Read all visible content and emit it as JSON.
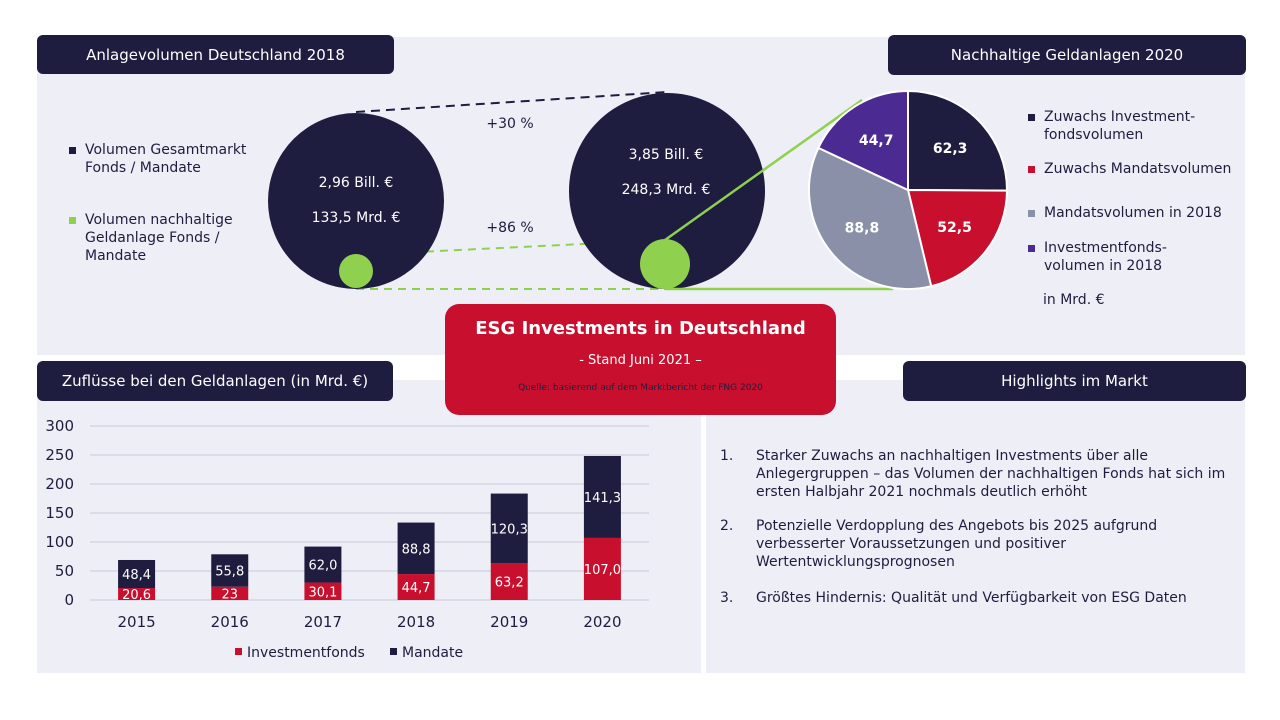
{
  "colors": {
    "navy": "#1e1d3f",
    "green": "#8fd14f",
    "red": "#c8102e",
    "grey": "#8a90a8",
    "purple": "#4b2a91",
    "panel": "#eeeef6"
  },
  "top_left": {
    "header": "Anlagevolumen Deutschland 2018",
    "legend": [
      {
        "label": "Volumen Gesamtmarkt Fonds / Mandate",
        "color": "#1e1d3f"
      },
      {
        "label": "Volumen nachhaltige Geldanlage Fonds / Mandate",
        "color": "#8fd14f"
      }
    ],
    "circle_2018": {
      "total": "2,96 Bill.  €",
      "sustainable": "133,5 Mrd. €"
    },
    "circle_2020": {
      "total": "3,85 Bill.  €",
      "sustainable": "248,3 Mrd. €"
    },
    "growth_total": "+30 %",
    "growth_sustainable": "+86 %"
  },
  "top_right": {
    "header": "Nachhaltige Geldanlagen 2020",
    "legend": [
      {
        "label": "Zuwachs Investment-fondsvolumen",
        "color": "#1e1d3f"
      },
      {
        "label": "Zuwachs Mandatsvolumen",
        "color": "#c8102e"
      },
      {
        "label": "Mandatsvolumen in  2018",
        "color": "#8a90a8"
      },
      {
        "label": "Investmentfonds-volumen in  2018",
        "color": "#4b2a91"
      }
    ],
    "unit": "in  Mrd. €"
  },
  "pie_data": {
    "type": "pie",
    "slices": [
      {
        "label": "Zuwachs Investmentfondsvolumen",
        "value": 62.3,
        "text": "62,3",
        "color": "#1e1d3f"
      },
      {
        "label": "Zuwachs Mandatsvolumen",
        "value": 52.5,
        "text": "52,5",
        "color": "#c8102e"
      },
      {
        "label": "Mandatsvolumen in 2018",
        "value": 88.8,
        "text": "88,8",
        "color": "#8a90a8"
      },
      {
        "label": "Investmentfondsvolumen in 2018",
        "value": 44.7,
        "text": "44,7",
        "color": "#4b2a91"
      }
    ]
  },
  "center": {
    "title": "ESG Investments in Deutschland",
    "subtitle": "- Stand Juni 2021 –",
    "source": "Quelle: basierend auf dem Marktbericht der FNG 2020"
  },
  "bottom_left": {
    "header": "Zuflüsse bei den Geldanlagen  (in Mrd. €)"
  },
  "chart_data": {
    "type": "bar",
    "stacked": true,
    "categories": [
      "2015",
      "2016",
      "2017",
      "2018",
      "2019",
      "2020"
    ],
    "series": [
      {
        "name": "Investmentfonds",
        "color": "#c8102e",
        "values": [
          20.6,
          23,
          30.1,
          44.7,
          63.2,
          107.0
        ],
        "labels": [
          "20,6",
          "23",
          "30,1",
          "44,7",
          "63,2",
          "107,0"
        ]
      },
      {
        "name": "Mandate",
        "color": "#1e1d3f",
        "values": [
          48.4,
          55.8,
          62.0,
          88.8,
          120.3,
          141.3
        ],
        "labels": [
          "48,4",
          "55,8",
          "62,0",
          "88,8",
          "120,3",
          "141,3"
        ]
      }
    ],
    "ylim": [
      0,
      300
    ],
    "yticks": [
      "0",
      "50",
      "100",
      "150",
      "200",
      "250",
      "300"
    ],
    "grid": true,
    "legend_position": "bottom"
  },
  "bottom_right": {
    "header": "Highlights  im Markt",
    "items": [
      {
        "num": "1.",
        "text": "Starker Zuwachs an nachhaltigen  Investments über alle Anlegergruppen  – das Volumen der nachhaltigen  Fonds hat sich im ersten Halbjahr  2021 nochmals deutlich  erhöht"
      },
      {
        "num": "2.",
        "text": "Potenzielle Verdopplung des Angebots bis 2025 aufgrund verbesserter Voraussetzungen und positiver Wertentwicklungsprognosen"
      },
      {
        "num": "3.",
        "text": "Größtes Hindernis:  Qualität  und  Verfügbarkeit von ESG Daten"
      }
    ]
  }
}
